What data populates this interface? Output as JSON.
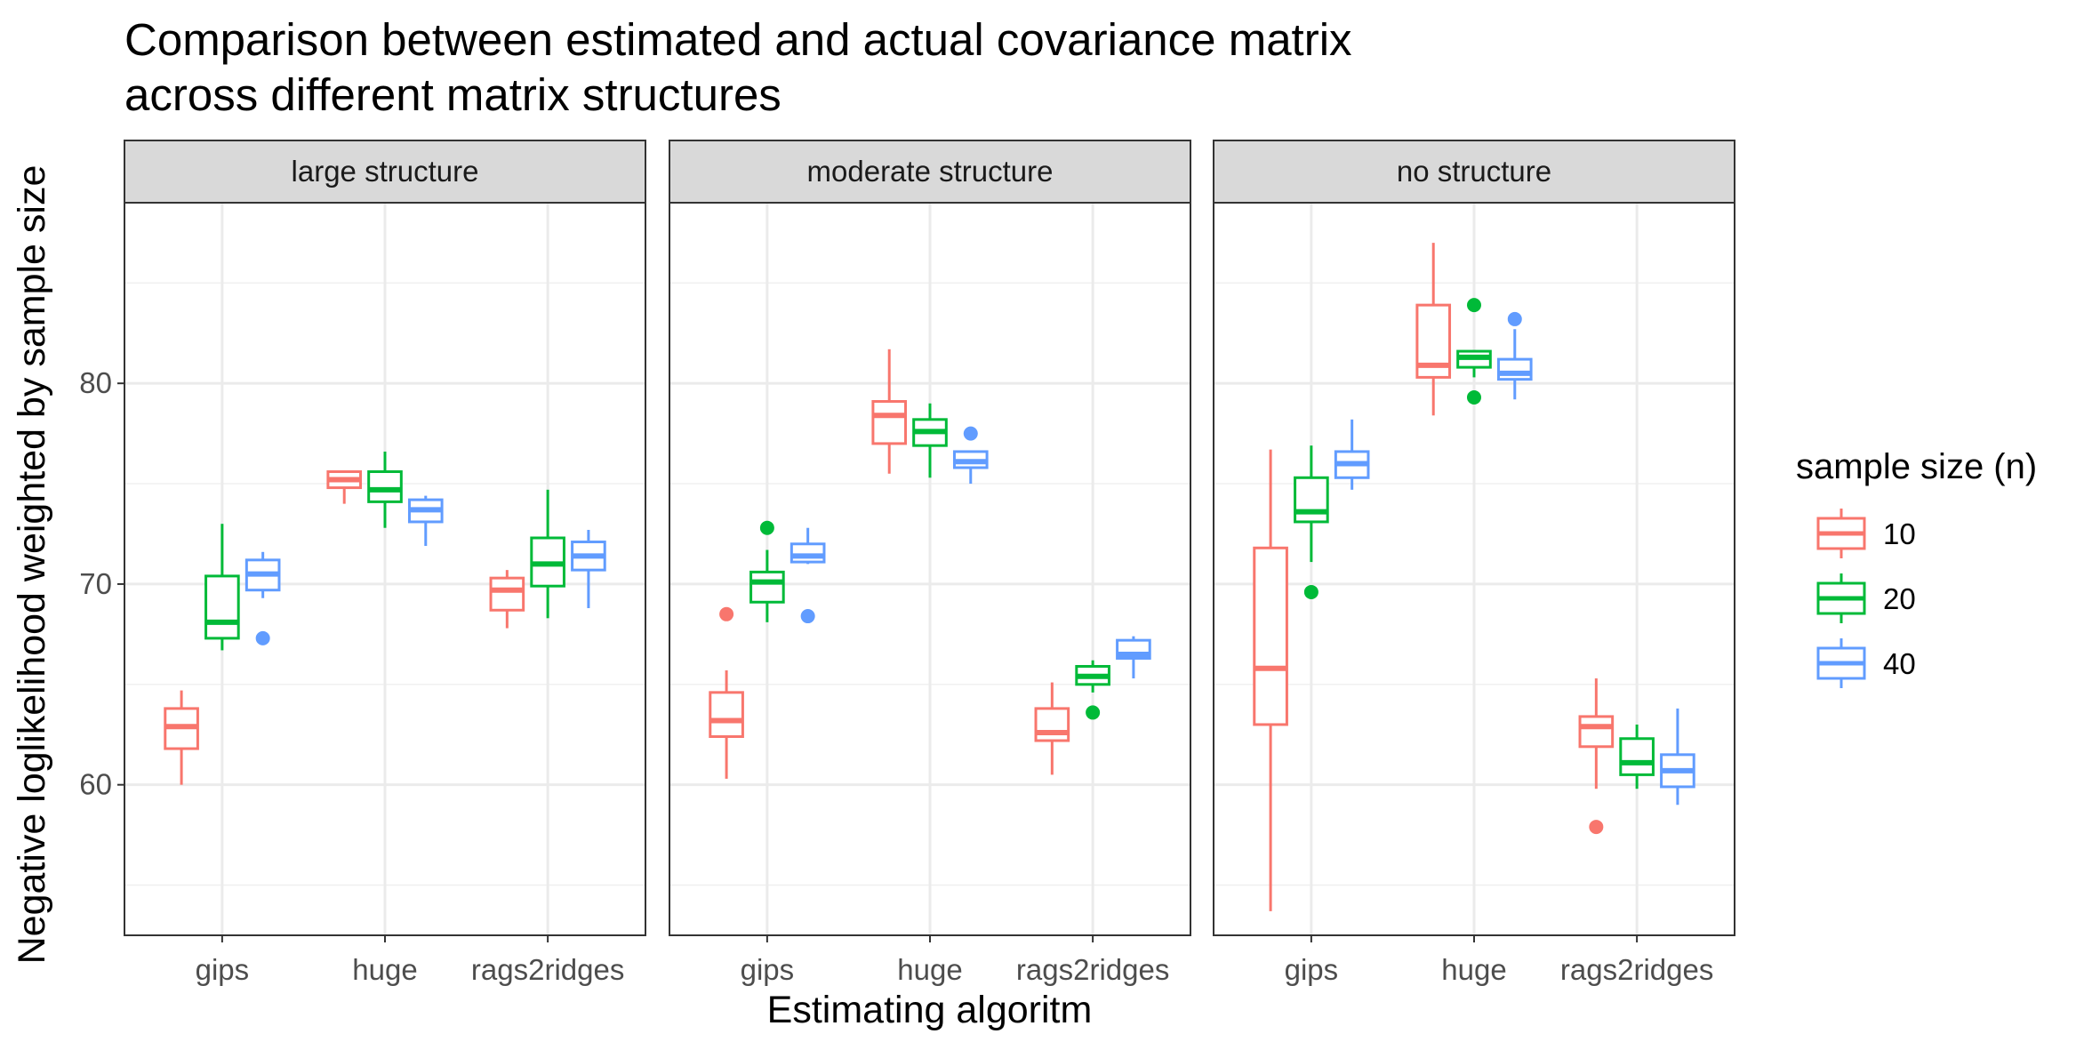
{
  "chart_data": {
    "type": "box",
    "title_lines": [
      "Comparison between estimated and actual covariance matrix",
      "across different matrix structures"
    ],
    "xlabel": "Estimating algoritm",
    "ylabel": "Negative loglikelihood weighted by sample size",
    "ylim": [
      52.5,
      89
    ],
    "y_ticks": [
      60,
      70,
      80
    ],
    "y_ticks_labels": [
      "60",
      "70",
      "80"
    ],
    "categories": [
      "gips",
      "huge",
      "rags2ridges"
    ],
    "grid": true,
    "legend": {
      "title": "sample size (n)",
      "position": "right",
      "entries": [
        {
          "label": "10",
          "color": "#F8766D"
        },
        {
          "label": "20",
          "color": "#00BA38"
        },
        {
          "label": "40",
          "color": "#619CFF"
        }
      ]
    },
    "facets": [
      {
        "label": "large structure",
        "groups": [
          {
            "category": "gips",
            "n": "10",
            "whisker_low": 60.0,
            "q1": 61.8,
            "median": 62.9,
            "q3": 63.8,
            "whisker_high": 64.7,
            "outliers": []
          },
          {
            "category": "gips",
            "n": "20",
            "whisker_low": 66.7,
            "q1": 67.3,
            "median": 68.1,
            "q3": 70.4,
            "whisker_high": 73.0,
            "outliers": []
          },
          {
            "category": "gips",
            "n": "40",
            "whisker_low": 69.3,
            "q1": 69.7,
            "median": 70.5,
            "q3": 71.2,
            "whisker_high": 71.6,
            "outliers": [
              67.3
            ]
          },
          {
            "category": "huge",
            "n": "10",
            "whisker_low": 74.0,
            "q1": 74.8,
            "median": 75.2,
            "q3": 75.6,
            "whisker_high": 75.6,
            "outliers": []
          },
          {
            "category": "huge",
            "n": "20",
            "whisker_low": 72.8,
            "q1": 74.1,
            "median": 74.7,
            "q3": 75.6,
            "whisker_high": 76.6,
            "outliers": []
          },
          {
            "category": "huge",
            "n": "40",
            "whisker_low": 71.9,
            "q1": 73.1,
            "median": 73.7,
            "q3": 74.2,
            "whisker_high": 74.4,
            "outliers": []
          },
          {
            "category": "rags2ridges",
            "n": "10",
            "whisker_low": 67.8,
            "q1": 68.7,
            "median": 69.7,
            "q3": 70.3,
            "whisker_high": 70.7,
            "outliers": []
          },
          {
            "category": "rags2ridges",
            "n": "20",
            "whisker_low": 68.3,
            "q1": 69.9,
            "median": 71.0,
            "q3": 72.3,
            "whisker_high": 74.7,
            "outliers": []
          },
          {
            "category": "rags2ridges",
            "n": "40",
            "whisker_low": 68.8,
            "q1": 70.7,
            "median": 71.4,
            "q3": 72.1,
            "whisker_high": 72.7,
            "outliers": []
          }
        ]
      },
      {
        "label": "moderate structure",
        "groups": [
          {
            "category": "gips",
            "n": "10",
            "whisker_low": 60.3,
            "q1": 62.4,
            "median": 63.2,
            "q3": 64.6,
            "whisker_high": 65.7,
            "outliers": [
              68.5
            ]
          },
          {
            "category": "gips",
            "n": "20",
            "whisker_low": 68.1,
            "q1": 69.1,
            "median": 70.1,
            "q3": 70.6,
            "whisker_high": 71.7,
            "outliers": [
              72.8
            ]
          },
          {
            "category": "gips",
            "n": "40",
            "whisker_low": 71.0,
            "q1": 71.1,
            "median": 71.4,
            "q3": 72.0,
            "whisker_high": 72.8,
            "outliers": [
              68.4
            ]
          },
          {
            "category": "huge",
            "n": "10",
            "whisker_low": 75.5,
            "q1": 77.0,
            "median": 78.4,
            "q3": 79.1,
            "whisker_high": 81.7,
            "outliers": []
          },
          {
            "category": "huge",
            "n": "20",
            "whisker_low": 75.3,
            "q1": 76.9,
            "median": 77.6,
            "q3": 78.2,
            "whisker_high": 79.0,
            "outliers": []
          },
          {
            "category": "huge",
            "n": "40",
            "whisker_low": 75.0,
            "q1": 75.8,
            "median": 76.1,
            "q3": 76.6,
            "whisker_high": 76.6,
            "outliers": [
              77.5
            ]
          },
          {
            "category": "rags2ridges",
            "n": "10",
            "whisker_low": 60.5,
            "q1": 62.2,
            "median": 62.6,
            "q3": 63.8,
            "whisker_high": 65.1,
            "outliers": []
          },
          {
            "category": "rags2ridges",
            "n": "20",
            "whisker_low": 64.6,
            "q1": 65.0,
            "median": 65.4,
            "q3": 65.9,
            "whisker_high": 66.2,
            "outliers": [
              63.6
            ]
          },
          {
            "category": "rags2ridges",
            "n": "40",
            "whisker_low": 65.3,
            "q1": 66.3,
            "median": 66.5,
            "q3": 67.2,
            "whisker_high": 67.4,
            "outliers": []
          }
        ]
      },
      {
        "label": "no structure",
        "groups": [
          {
            "category": "gips",
            "n": "10",
            "whisker_low": 53.7,
            "q1": 63.0,
            "median": 65.8,
            "q3": 71.8,
            "whisker_high": 76.7,
            "outliers": []
          },
          {
            "category": "gips",
            "n": "20",
            "whisker_low": 71.1,
            "q1": 73.1,
            "median": 73.6,
            "q3": 75.3,
            "whisker_high": 76.9,
            "outliers": [
              69.6
            ]
          },
          {
            "category": "gips",
            "n": "40",
            "whisker_low": 74.7,
            "q1": 75.3,
            "median": 76.0,
            "q3": 76.6,
            "whisker_high": 78.2,
            "outliers": []
          },
          {
            "category": "huge",
            "n": "10",
            "whisker_low": 78.4,
            "q1": 80.3,
            "median": 80.9,
            "q3": 83.9,
            "whisker_high": 87.0,
            "outliers": []
          },
          {
            "category": "huge",
            "n": "20",
            "whisker_low": 80.3,
            "q1": 80.8,
            "median": 81.3,
            "q3": 81.6,
            "whisker_high": 81.6,
            "outliers": [
              83.9,
              79.3
            ]
          },
          {
            "category": "huge",
            "n": "40",
            "whisker_low": 79.2,
            "q1": 80.2,
            "median": 80.5,
            "q3": 81.2,
            "whisker_high": 82.7,
            "outliers": [
              83.2
            ]
          },
          {
            "category": "rags2ridges",
            "n": "10",
            "whisker_low": 59.8,
            "q1": 61.9,
            "median": 62.9,
            "q3": 63.4,
            "whisker_high": 65.3,
            "outliers": [
              57.9
            ]
          },
          {
            "category": "rags2ridges",
            "n": "20",
            "whisker_low": 59.8,
            "q1": 60.5,
            "median": 61.1,
            "q3": 62.3,
            "whisker_high": 63.0,
            "outliers": []
          },
          {
            "category": "rags2ridges",
            "n": "40",
            "whisker_low": 59.0,
            "q1": 59.9,
            "median": 60.7,
            "q3": 61.5,
            "whisker_high": 63.8,
            "outliers": []
          }
        ]
      }
    ]
  }
}
